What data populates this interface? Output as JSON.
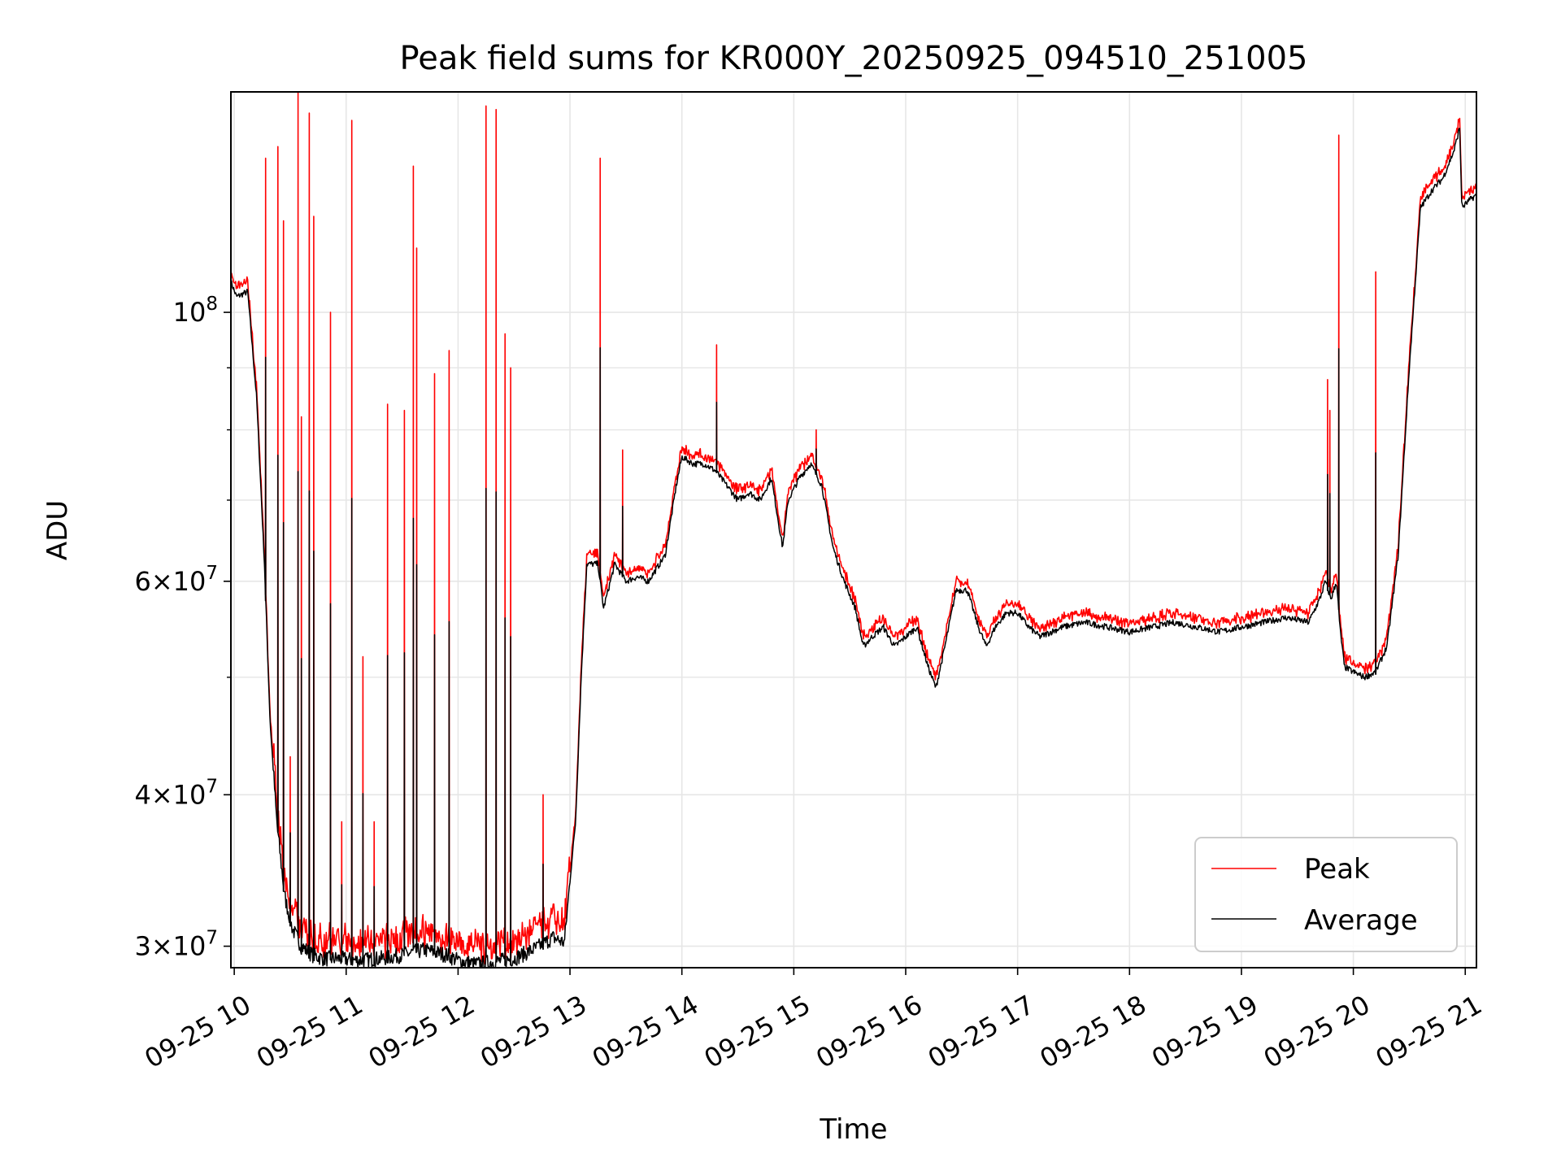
{
  "chart_data": {
    "type": "line",
    "title": "Peak field sums for KR000Y_20250925_094510_251005",
    "xlabel": "Time",
    "ylabel": "ADU",
    "yscale": "log",
    "ylim": [
      28800000,
      152000000
    ],
    "xlim_hours": [
      9.97,
      21.1
    ],
    "grid": true,
    "legend_position": "lower-right",
    "x_tick_labels": [
      "09-25 10",
      "09-25 11",
      "09-25 12",
      "09-25 13",
      "09-25 14",
      "09-25 15",
      "09-25 16",
      "09-25 17",
      "09-25 18",
      "09-25 19",
      "09-25 20",
      "09-25 21"
    ],
    "x_tick_hours": [
      10,
      11,
      12,
      13,
      14,
      15,
      16,
      17,
      18,
      19,
      20,
      21
    ],
    "y_ticks": [
      {
        "value": 30000000,
        "base": "3",
        "exp": "7"
      },
      {
        "value": 40000000,
        "base": "4",
        "exp": "7"
      },
      {
        "value": 60000000,
        "base": "6",
        "exp": "7"
      },
      {
        "value": 100000000,
        "base": "",
        "exp": "8"
      }
    ],
    "y_minor_ticks": [
      50000000,
      70000000,
      80000000,
      90000000
    ],
    "average_points": [
      [
        9.97,
        106000000
      ],
      [
        10.02,
        103000000
      ],
      [
        10.12,
        104000000
      ],
      [
        10.2,
        85000000
      ],
      [
        10.27,
        62000000
      ],
      [
        10.32,
        46000000
      ],
      [
        10.38,
        38000000
      ],
      [
        10.45,
        33000000
      ],
      [
        10.52,
        31000000
      ],
      [
        10.6,
        30000000
      ],
      [
        10.7,
        29500000
      ],
      [
        10.8,
        29300000
      ],
      [
        10.95,
        29300000
      ],
      [
        11.1,
        29200000
      ],
      [
        11.3,
        29300000
      ],
      [
        11.5,
        29500000
      ],
      [
        11.7,
        29800000
      ],
      [
        11.9,
        29500000
      ],
      [
        12.0,
        29200000
      ],
      [
        12.15,
        29000000
      ],
      [
        12.3,
        29100000
      ],
      [
        12.5,
        29300000
      ],
      [
        12.7,
        29900000
      ],
      [
        12.85,
        30500000
      ],
      [
        12.95,
        30200000
      ],
      [
        13.0,
        34000000
      ],
      [
        13.05,
        38000000
      ],
      [
        13.1,
        50000000
      ],
      [
        13.15,
        62000000
      ],
      [
        13.25,
        62000000
      ],
      [
        13.3,
        57000000
      ],
      [
        13.4,
        62000000
      ],
      [
        13.5,
        60000000
      ],
      [
        13.6,
        60500000
      ],
      [
        13.7,
        60000000
      ],
      [
        13.85,
        63000000
      ],
      [
        13.95,
        72000000
      ],
      [
        14.0,
        76000000
      ],
      [
        14.1,
        75000000
      ],
      [
        14.2,
        75000000
      ],
      [
        14.3,
        74000000
      ],
      [
        14.4,
        72000000
      ],
      [
        14.5,
        70000000
      ],
      [
        14.6,
        71000000
      ],
      [
        14.7,
        70000000
      ],
      [
        14.8,
        73000000
      ],
      [
        14.9,
        64000000
      ],
      [
        14.95,
        70000000
      ],
      [
        15.05,
        73000000
      ],
      [
        15.15,
        75000000
      ],
      [
        15.25,
        72000000
      ],
      [
        15.35,
        64000000
      ],
      [
        15.45,
        60000000
      ],
      [
        15.55,
        57000000
      ],
      [
        15.62,
        53000000
      ],
      [
        15.7,
        54000000
      ],
      [
        15.8,
        55000000
      ],
      [
        15.9,
        53000000
      ],
      [
        16.0,
        54000000
      ],
      [
        16.1,
        55000000
      ],
      [
        16.2,
        51000000
      ],
      [
        16.27,
        49000000
      ],
      [
        16.35,
        53000000
      ],
      [
        16.45,
        59000000
      ],
      [
        16.55,
        59000000
      ],
      [
        16.65,
        55000000
      ],
      [
        16.72,
        53000000
      ],
      [
        16.8,
        55000000
      ],
      [
        16.9,
        56500000
      ],
      [
        17.0,
        56500000
      ],
      [
        17.1,
        55000000
      ],
      [
        17.2,
        54000000
      ],
      [
        17.4,
        55000000
      ],
      [
        17.6,
        55500000
      ],
      [
        17.8,
        55000000
      ],
      [
        18.0,
        54500000
      ],
      [
        18.2,
        55000000
      ],
      [
        18.4,
        55500000
      ],
      [
        18.6,
        55000000
      ],
      [
        18.8,
        54500000
      ],
      [
        19.0,
        55000000
      ],
      [
        19.2,
        55500000
      ],
      [
        19.4,
        56000000
      ],
      [
        19.6,
        55500000
      ],
      [
        19.7,
        58000000
      ],
      [
        19.75,
        60000000
      ],
      [
        19.8,
        58000000
      ],
      [
        19.85,
        60000000
      ],
      [
        19.88,
        55000000
      ],
      [
        19.92,
        51000000
      ],
      [
        20.0,
        50500000
      ],
      [
        20.1,
        50000000
      ],
      [
        20.2,
        50500000
      ],
      [
        20.3,
        53000000
      ],
      [
        20.4,
        63000000
      ],
      [
        20.5,
        90000000
      ],
      [
        20.6,
        122000000
      ],
      [
        20.7,
        126000000
      ],
      [
        20.8,
        129000000
      ],
      [
        20.9,
        136000000
      ],
      [
        20.95,
        142000000
      ],
      [
        20.97,
        122000000
      ],
      [
        21.05,
        124000000
      ],
      [
        21.1,
        125000000
      ]
    ],
    "peak_spikes": [
      [
        10.28,
        134000000
      ],
      [
        10.39,
        137000000
      ],
      [
        10.44,
        119000000
      ],
      [
        10.5,
        43000000
      ],
      [
        10.57,
        152000000
      ],
      [
        10.6,
        82000000
      ],
      [
        10.67,
        146000000
      ],
      [
        10.71,
        120000000
      ],
      [
        10.86,
        100000000
      ],
      [
        10.96,
        38000000
      ],
      [
        11.05,
        144000000
      ],
      [
        11.15,
        52000000
      ],
      [
        11.25,
        38000000
      ],
      [
        11.37,
        84000000
      ],
      [
        11.52,
        83000000
      ],
      [
        11.6,
        132000000
      ],
      [
        11.63,
        113000000
      ],
      [
        11.79,
        89000000
      ],
      [
        11.92,
        93000000
      ],
      [
        12.25,
        148000000
      ],
      [
        12.34,
        147000000
      ],
      [
        12.42,
        96000000
      ],
      [
        12.47,
        90000000
      ],
      [
        12.76,
        40000000
      ],
      [
        13.27,
        134000000
      ],
      [
        13.47,
        77000000
      ],
      [
        14.31,
        94000000
      ],
      [
        15.2,
        80000000
      ],
      [
        19.77,
        88000000
      ],
      [
        19.79,
        83000000
      ],
      [
        19.87,
        140000000
      ],
      [
        20.2,
        108000000
      ]
    ],
    "series": [
      {
        "name": "Peak",
        "color": "#ff0000"
      },
      {
        "name": "Average",
        "color": "#000000"
      }
    ]
  }
}
